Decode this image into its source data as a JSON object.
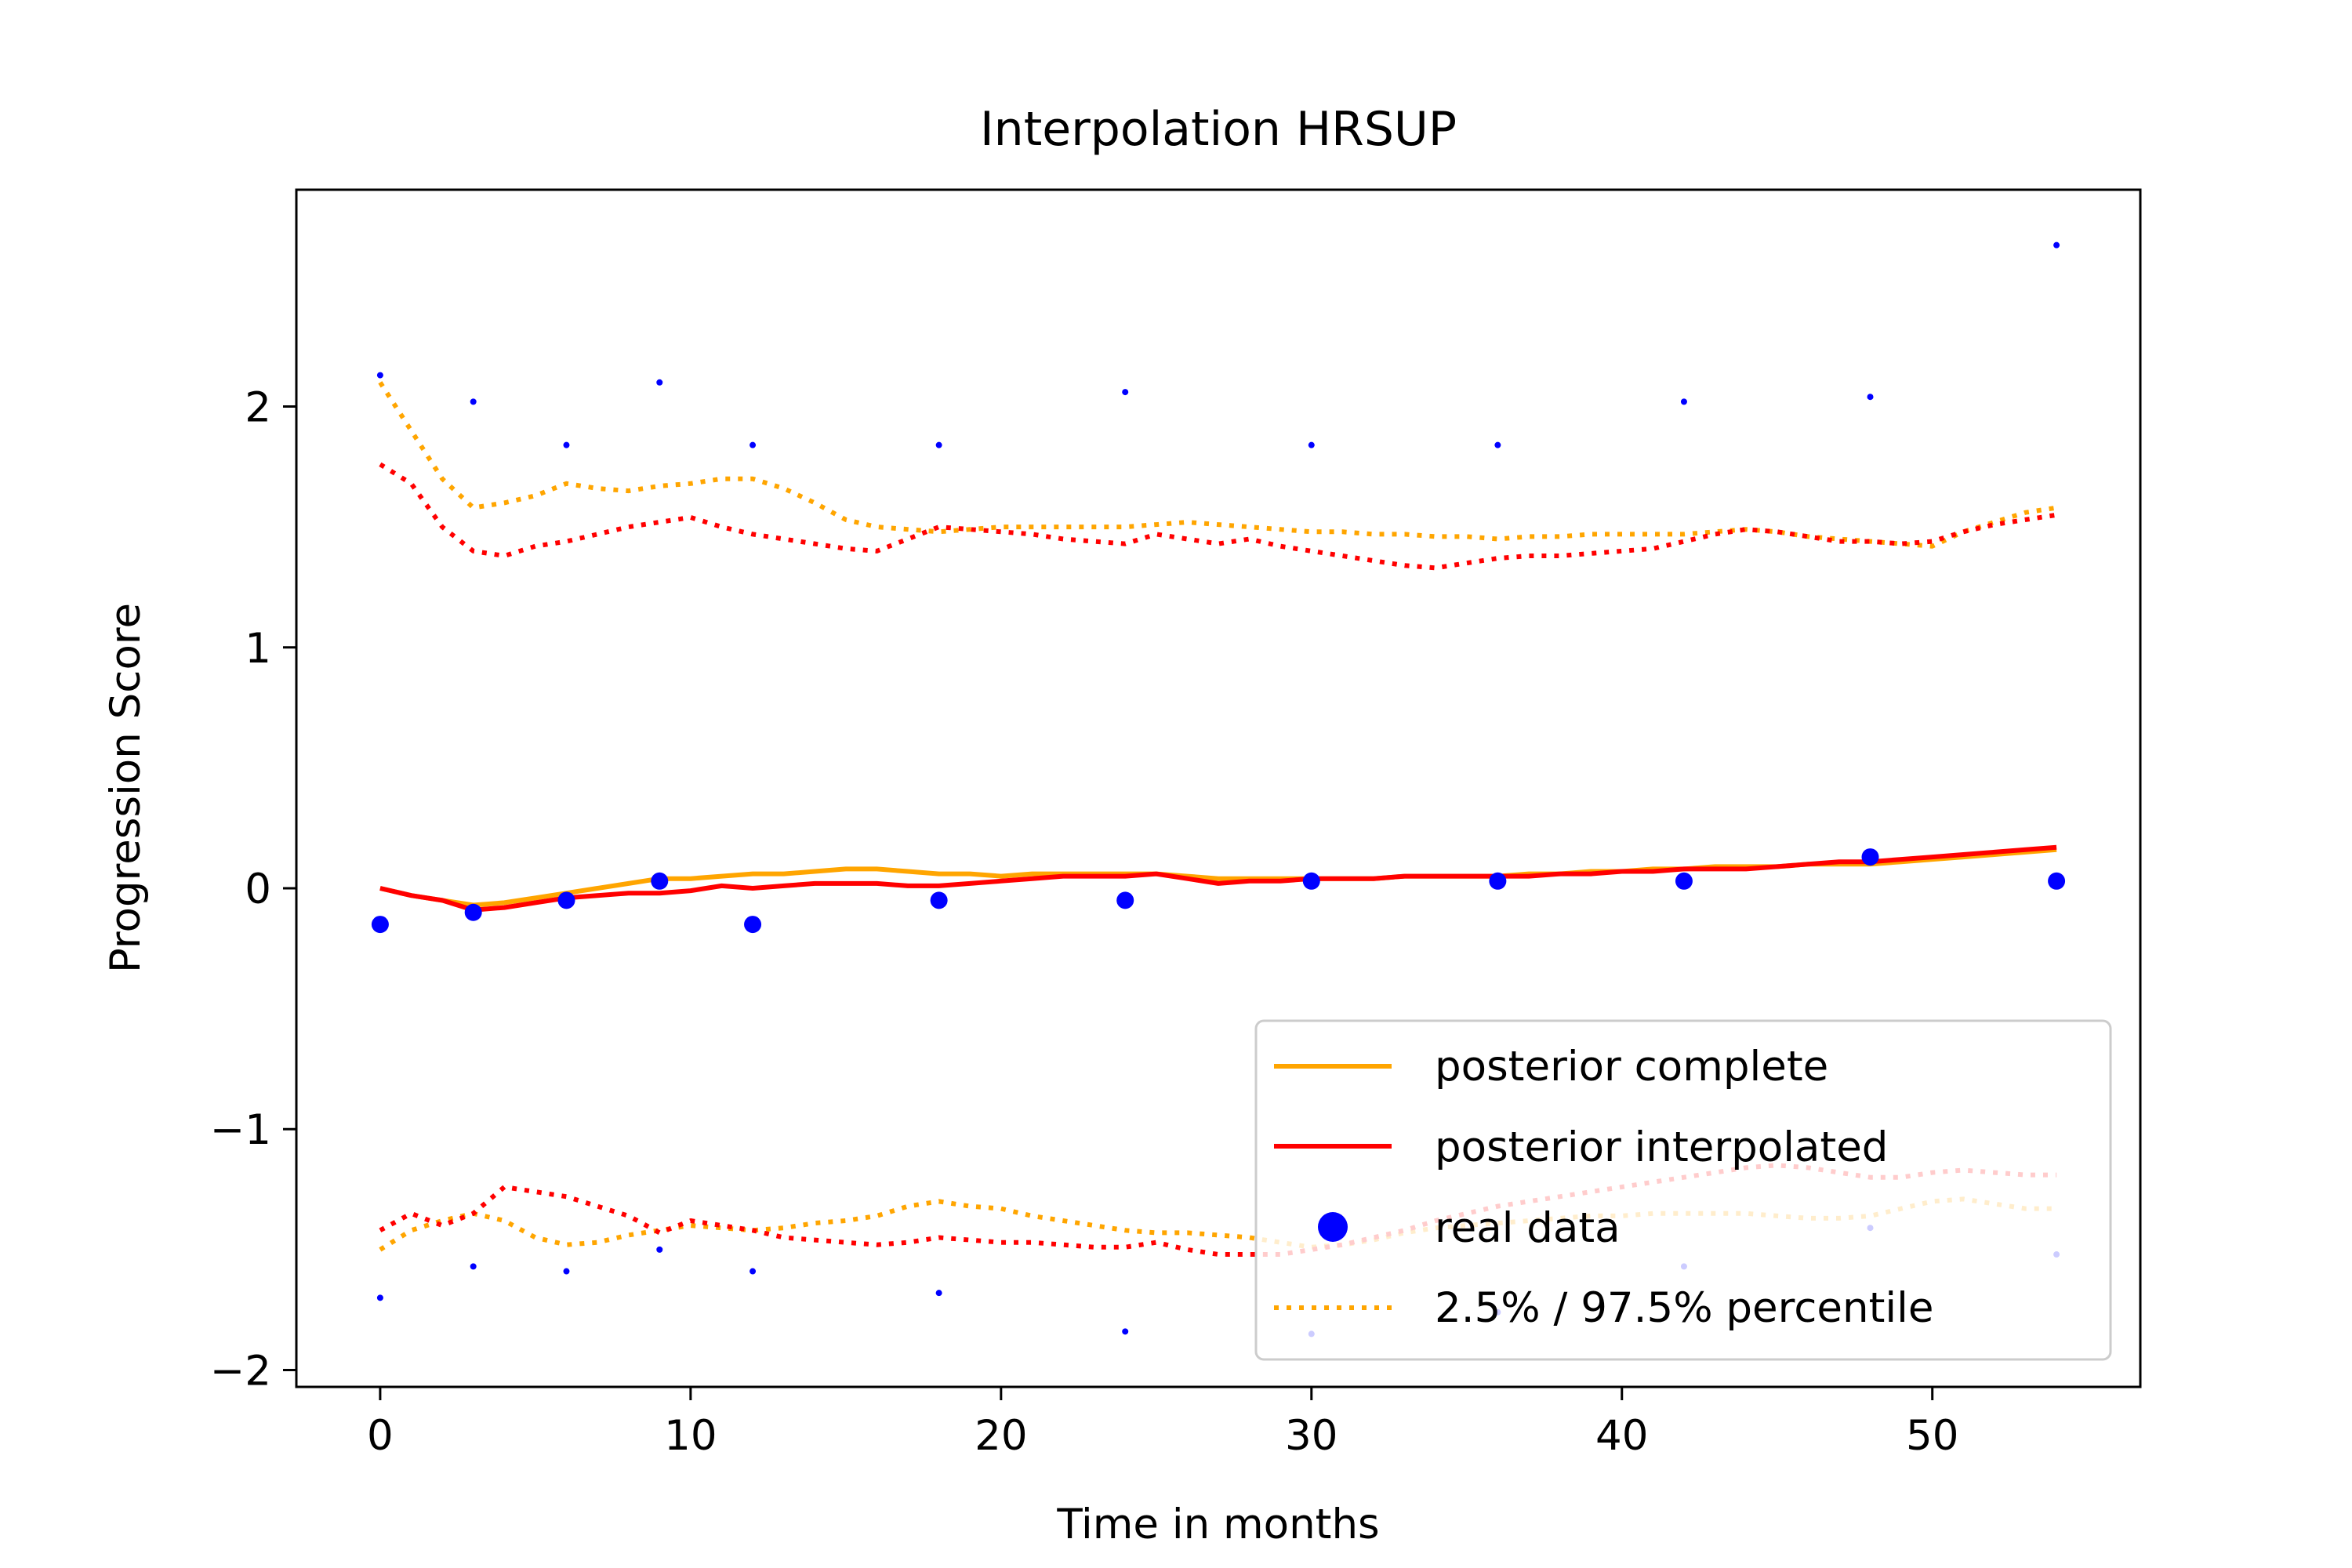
{
  "chart_data": {
    "type": "line",
    "title": "Interpolation HRSUP",
    "xlabel": "Time in months",
    "ylabel": "Progression Score",
    "xlim": [
      -2.7,
      56.7
    ],
    "ylim": [
      -2.07,
      2.9
    ],
    "xticks": [
      0,
      10,
      20,
      30,
      40,
      50
    ],
    "yticks": [
      -2,
      -1,
      0,
      1,
      2
    ],
    "ytick_labels": [
      "−2",
      "−1",
      "0",
      "1",
      "2"
    ],
    "legend_position": "lower right",
    "grid": false,
    "series": [
      {
        "name": "posterior complete",
        "style": "solid",
        "color": "#ffa500",
        "x": [
          0,
          1,
          2,
          3,
          4,
          5,
          6,
          7,
          8,
          9,
          10,
          11,
          12,
          13,
          14,
          15,
          16,
          17,
          18,
          19,
          20,
          21,
          22,
          23,
          24,
          25,
          26,
          27,
          28,
          29,
          30,
          31,
          32,
          33,
          34,
          35,
          36,
          37,
          38,
          39,
          40,
          41,
          42,
          43,
          44,
          45,
          46,
          47,
          48,
          49,
          50,
          51,
          52,
          53,
          54
        ],
        "y": [
          0.0,
          -0.03,
          -0.05,
          -0.07,
          -0.06,
          -0.04,
          -0.02,
          0.0,
          0.02,
          0.04,
          0.04,
          0.05,
          0.06,
          0.06,
          0.07,
          0.08,
          0.08,
          0.07,
          0.06,
          0.06,
          0.05,
          0.06,
          0.06,
          0.06,
          0.06,
          0.06,
          0.05,
          0.04,
          0.04,
          0.04,
          0.04,
          0.04,
          0.04,
          0.05,
          0.05,
          0.05,
          0.05,
          0.06,
          0.06,
          0.07,
          0.07,
          0.08,
          0.08,
          0.09,
          0.09,
          0.09,
          0.1,
          0.1,
          0.1,
          0.11,
          0.12,
          0.13,
          0.14,
          0.15,
          0.16
        ]
      },
      {
        "name": "posterior interpolated",
        "style": "solid",
        "color": "#ff0000",
        "x": [
          0,
          1,
          2,
          3,
          4,
          5,
          6,
          7,
          8,
          9,
          10,
          11,
          12,
          13,
          14,
          15,
          16,
          17,
          18,
          19,
          20,
          21,
          22,
          23,
          24,
          25,
          26,
          27,
          28,
          29,
          30,
          31,
          32,
          33,
          34,
          35,
          36,
          37,
          38,
          39,
          40,
          41,
          42,
          43,
          44,
          45,
          46,
          47,
          48,
          49,
          50,
          51,
          52,
          53,
          54
        ],
        "y": [
          0.0,
          -0.03,
          -0.05,
          -0.09,
          -0.08,
          -0.06,
          -0.04,
          -0.03,
          -0.02,
          -0.02,
          -0.01,
          0.01,
          0.0,
          0.01,
          0.02,
          0.02,
          0.02,
          0.01,
          0.01,
          0.02,
          0.03,
          0.04,
          0.05,
          0.05,
          0.05,
          0.06,
          0.04,
          0.02,
          0.03,
          0.03,
          0.04,
          0.04,
          0.04,
          0.05,
          0.05,
          0.05,
          0.05,
          0.05,
          0.06,
          0.06,
          0.07,
          0.07,
          0.08,
          0.08,
          0.08,
          0.09,
          0.1,
          0.11,
          0.11,
          0.12,
          0.13,
          0.14,
          0.15,
          0.16,
          0.17
        ]
      },
      {
        "name": "real data",
        "style": "marker",
        "color": "#0000ff",
        "x": [
          0,
          3,
          6,
          9,
          12,
          18,
          24,
          30,
          36,
          42,
          48,
          54
        ],
        "y": [
          -0.15,
          -0.1,
          -0.05,
          0.03,
          -0.15,
          -0.05,
          -0.05,
          0.03,
          0.03,
          0.03,
          0.13,
          0.03
        ]
      },
      {
        "name": "2.5% / 97.5% percentile",
        "style": "dotted",
        "color": "#ffa500",
        "x": [
          0,
          1,
          2,
          3,
          4,
          5,
          6,
          7,
          8,
          9,
          10,
          11,
          12,
          13,
          14,
          15,
          16,
          17,
          18,
          19,
          20,
          21,
          22,
          23,
          24,
          25,
          26,
          27,
          28,
          29,
          30,
          31,
          32,
          33,
          34,
          35,
          36,
          37,
          38,
          39,
          40,
          41,
          42,
          43,
          44,
          45,
          46,
          47,
          48,
          49,
          50,
          51,
          52,
          53,
          54
        ],
        "y": [
          2.1,
          1.9,
          1.7,
          1.58,
          1.6,
          1.63,
          1.68,
          1.66,
          1.65,
          1.67,
          1.68,
          1.7,
          1.7,
          1.66,
          1.6,
          1.53,
          1.5,
          1.49,
          1.48,
          1.49,
          1.5,
          1.5,
          1.5,
          1.5,
          1.5,
          1.51,
          1.52,
          1.51,
          1.5,
          1.49,
          1.48,
          1.48,
          1.47,
          1.47,
          1.46,
          1.46,
          1.45,
          1.46,
          1.46,
          1.47,
          1.47,
          1.47,
          1.47,
          1.48,
          1.49,
          1.48,
          1.46,
          1.45,
          1.44,
          1.43,
          1.42,
          1.48,
          1.52,
          1.56,
          1.58
        ]
      },
      {
        "style": "dotted",
        "color": "#ffa500",
        "x": [
          0,
          1,
          2,
          3,
          4,
          5,
          6,
          7,
          8,
          9,
          10,
          11,
          12,
          13,
          14,
          15,
          16,
          17,
          18,
          19,
          20,
          21,
          22,
          23,
          24,
          25,
          26,
          27,
          28,
          29,
          30,
          31,
          32,
          33,
          34,
          35,
          36,
          37,
          38,
          39,
          40,
          41,
          42,
          43,
          44,
          45,
          46,
          47,
          48,
          49,
          50,
          51,
          52,
          53,
          54
        ],
        "y": [
          -1.5,
          -1.42,
          -1.38,
          -1.35,
          -1.38,
          -1.45,
          -1.48,
          -1.47,
          -1.44,
          -1.42,
          -1.4,
          -1.41,
          -1.42,
          -1.41,
          -1.39,
          -1.38,
          -1.36,
          -1.32,
          -1.3,
          -1.32,
          -1.33,
          -1.36,
          -1.38,
          -1.4,
          -1.42,
          -1.43,
          -1.43,
          -1.44,
          -1.45,
          -1.47,
          -1.49,
          -1.48,
          -1.46,
          -1.43,
          -1.41,
          -1.4,
          -1.39,
          -1.38,
          -1.37,
          -1.36,
          -1.36,
          -1.35,
          -1.35,
          -1.35,
          -1.35,
          -1.36,
          -1.37,
          -1.37,
          -1.36,
          -1.33,
          -1.3,
          -1.29,
          -1.31,
          -1.33,
          -1.33
        ]
      },
      {
        "style": "dotted",
        "color": "#ff0000",
        "x": [
          0,
          1,
          2,
          3,
          4,
          5,
          6,
          7,
          8,
          9,
          10,
          11,
          12,
          13,
          14,
          15,
          16,
          17,
          18,
          19,
          20,
          21,
          22,
          23,
          24,
          25,
          26,
          27,
          28,
          29,
          30,
          31,
          32,
          33,
          34,
          35,
          36,
          37,
          38,
          39,
          40,
          41,
          42,
          43,
          44,
          45,
          46,
          47,
          48,
          49,
          50,
          51,
          52,
          53,
          54
        ],
        "y": [
          1.76,
          1.68,
          1.5,
          1.4,
          1.38,
          1.42,
          1.44,
          1.47,
          1.5,
          1.52,
          1.54,
          1.5,
          1.47,
          1.45,
          1.43,
          1.41,
          1.4,
          1.45,
          1.5,
          1.49,
          1.48,
          1.47,
          1.45,
          1.44,
          1.43,
          1.47,
          1.45,
          1.43,
          1.45,
          1.42,
          1.4,
          1.38,
          1.36,
          1.34,
          1.33,
          1.35,
          1.37,
          1.38,
          1.38,
          1.39,
          1.4,
          1.41,
          1.44,
          1.47,
          1.49,
          1.48,
          1.46,
          1.44,
          1.44,
          1.43,
          1.44,
          1.48,
          1.51,
          1.53,
          1.55
        ]
      },
      {
        "style": "dotted",
        "color": "#ff0000",
        "x": [
          0,
          1,
          2,
          3,
          4,
          5,
          6,
          7,
          8,
          9,
          10,
          11,
          12,
          13,
          14,
          15,
          16,
          17,
          18,
          19,
          20,
          21,
          22,
          23,
          24,
          25,
          26,
          27,
          28,
          29,
          30,
          31,
          32,
          33,
          34,
          35,
          36,
          37,
          38,
          39,
          40,
          41,
          42,
          43,
          44,
          45,
          46,
          47,
          48,
          49,
          50,
          51,
          52,
          53,
          54
        ],
        "y": [
          -1.42,
          -1.35,
          -1.4,
          -1.35,
          -1.24,
          -1.26,
          -1.28,
          -1.32,
          -1.36,
          -1.43,
          -1.38,
          -1.4,
          -1.42,
          -1.45,
          -1.46,
          -1.47,
          -1.48,
          -1.47,
          -1.45,
          -1.46,
          -1.47,
          -1.47,
          -1.48,
          -1.49,
          -1.49,
          -1.47,
          -1.5,
          -1.52,
          -1.52,
          -1.52,
          -1.5,
          -1.48,
          -1.45,
          -1.42,
          -1.38,
          -1.35,
          -1.32,
          -1.3,
          -1.28,
          -1.26,
          -1.24,
          -1.22,
          -1.2,
          -1.18,
          -1.16,
          -1.15,
          -1.16,
          -1.18,
          -1.2,
          -1.2,
          -1.18,
          -1.17,
          -1.18,
          -1.19,
          -1.19
        ]
      },
      {
        "style": "point-marker",
        "color": "#0000ff",
        "x": [
          0,
          3,
          6,
          9,
          12,
          18,
          24,
          30,
          36,
          42,
          48,
          54
        ],
        "y": [
          2.13,
          2.02,
          1.84,
          2.1,
          1.84,
          1.84,
          2.06,
          1.84,
          1.84,
          2.02,
          2.04,
          2.67
        ]
      },
      {
        "style": "point-marker",
        "color": "#0000ff",
        "x": [
          0,
          3,
          6,
          9,
          12,
          18,
          24,
          30,
          36,
          42,
          48,
          54
        ],
        "y": [
          -1.7,
          -1.57,
          -1.59,
          -1.5,
          -1.59,
          -1.68,
          -1.84,
          -1.85,
          -1.76,
          -1.57,
          -1.41,
          -1.52
        ]
      }
    ]
  }
}
